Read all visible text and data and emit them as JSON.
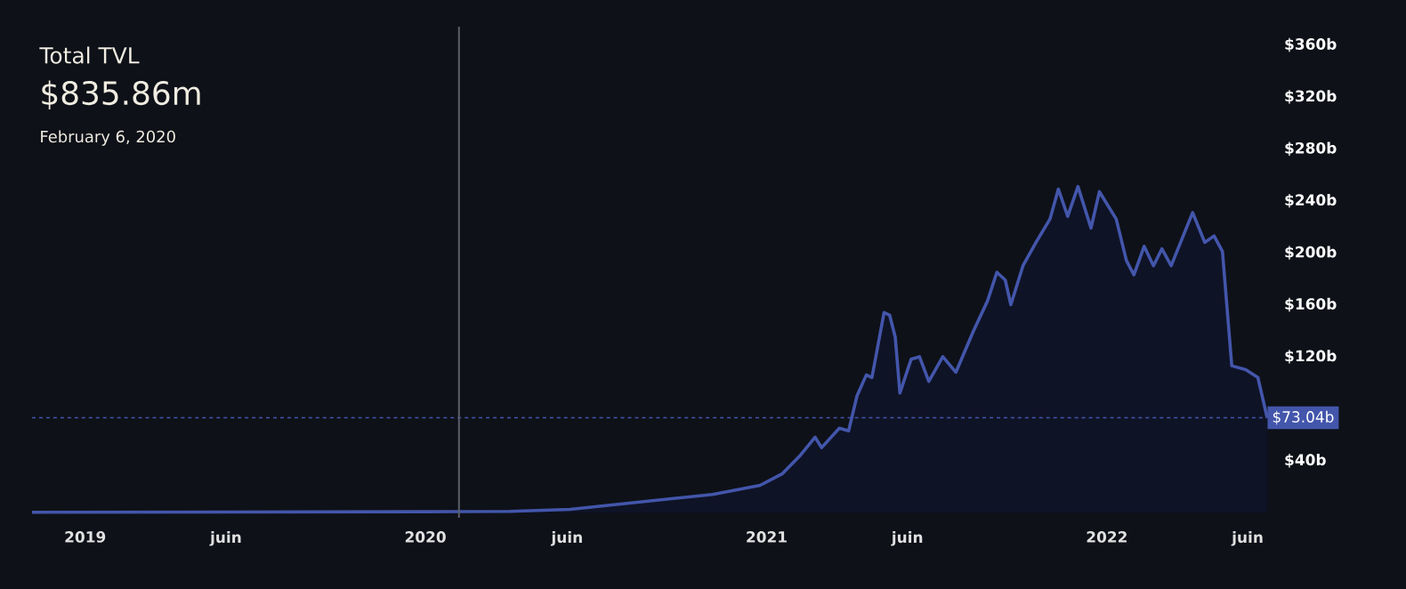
{
  "chart_data": {
    "type": "area",
    "title": "Total TVL",
    "subtitle": "$835.86m",
    "annotations": [
      "February 6, 2020"
    ],
    "x": [
      "2018-11-05",
      "2019-06-01",
      "2020-01-01",
      "2020-02-06",
      "2020-04-01",
      "2020-06-04",
      "2020-08-29",
      "2020-11-04",
      "2020-12-25",
      "2021-01-18",
      "2021-02-06",
      "2021-02-22",
      "2021-03-01",
      "2021-03-20",
      "2021-03-30",
      "2021-04-08",
      "2021-04-18",
      "2021-04-24",
      "2021-05-07",
      "2021-05-13",
      "2021-05-19",
      "2021-05-24",
      "2021-06-05",
      "2021-06-14",
      "2021-06-24",
      "2021-07-09",
      "2021-07-23",
      "2021-08-11",
      "2021-08-26",
      "2021-09-05",
      "2021-09-14",
      "2021-09-20",
      "2021-10-03",
      "2021-10-17",
      "2021-11-01",
      "2021-11-10",
      "2021-11-20",
      "2021-12-01",
      "2021-12-15",
      "2021-12-24",
      "2022-01-11",
      "2022-01-22",
      "2022-01-30",
      "2022-02-10",
      "2022-02-20",
      "2022-03-01",
      "2022-03-11",
      "2022-04-03",
      "2022-04-16",
      "2022-04-26",
      "2022-05-05",
      "2022-05-15",
      "2022-05-30",
      "2022-06-12",
      "2022-06-22"
    ],
    "series": [
      {
        "color": "#4356ab",
        "values": [
          0.3,
          0.5,
          0.7,
          0.84,
          1,
          2.5,
          9,
          14,
          21,
          30,
          44,
          58,
          50,
          65,
          63,
          90,
          106,
          104,
          154,
          152,
          135,
          92,
          118,
          120,
          101,
          120,
          108,
          140,
          163,
          185,
          179,
          160,
          190,
          208,
          226,
          249,
          228,
          251,
          219,
          247,
          226,
          194,
          183,
          205,
          190,
          203,
          190,
          231,
          208,
          213,
          201,
          113,
          110,
          104,
          73.04
        ]
      }
    ],
    "xlim": [
      "2018-11-05",
      "2022-06-22"
    ],
    "xticks": [
      {
        "value": "2019-01-01",
        "label": "2019"
      },
      {
        "value": "2019-06-01",
        "label": "juin"
      },
      {
        "value": "2020-01-01",
        "label": "2020"
      },
      {
        "value": "2020-06-01",
        "label": "juin"
      },
      {
        "value": "2021-01-01",
        "label": "2021"
      },
      {
        "value": "2021-06-01",
        "label": "juin"
      },
      {
        "value": "2022-01-01",
        "label": "2022"
      },
      {
        "value": "2022-06-01",
        "label": "juin"
      }
    ],
    "ylim": [
      -4,
      374
    ],
    "yticks": [
      {
        "value": 40,
        "label": "$40b"
      },
      {
        "value": 120,
        "label": "$120b"
      },
      {
        "value": 160,
        "label": "$160b"
      },
      {
        "value": 200,
        "label": "$200b"
      },
      {
        "value": 240,
        "label": "$240b"
      },
      {
        "value": 280,
        "label": "$280b"
      },
      {
        "value": 320,
        "label": "$320b"
      },
      {
        "value": 360,
        "label": "$360b"
      }
    ],
    "ref_lines": [
      {
        "axis": "y",
        "value": 73.04,
        "label": "$73.04b",
        "color": "#4356ab",
        "line_style": "dashed"
      },
      {
        "axis": "x",
        "value": "2020-02-06",
        "color": "#5a5f6a",
        "line_style": "solid"
      }
    ]
  }
}
